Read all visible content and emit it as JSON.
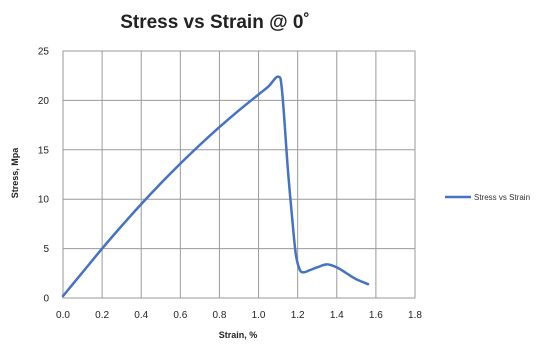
{
  "chart_data": {
    "type": "line",
    "title": "Stress vs Strain @ 0˚",
    "xlabel": "Strain, %",
    "ylabel": "Stress, Mpa",
    "xlim": [
      0,
      1.8
    ],
    "ylim": [
      0,
      25
    ],
    "x_ticks": [
      "0.0",
      "0.2",
      "0.4",
      "0.6",
      "0.8",
      "1.0",
      "1.2",
      "1.4",
      "1.6",
      "1.8"
    ],
    "y_ticks": [
      "0",
      "5",
      "10",
      "15",
      "20",
      "25"
    ],
    "grid": true,
    "legend_position": "right",
    "series": [
      {
        "name": "Stress vs Strain",
        "color": "#4472c4",
        "x": [
          0.0,
          0.1,
          0.2,
          0.3,
          0.4,
          0.5,
          0.6,
          0.7,
          0.8,
          0.9,
          1.0,
          1.05,
          1.1,
          1.12,
          1.15,
          1.17,
          1.19,
          1.21,
          1.23,
          1.26,
          1.3,
          1.35,
          1.4,
          1.45,
          1.5,
          1.56
        ],
        "y": [
          0.2,
          2.6,
          5.0,
          7.3,
          9.5,
          11.6,
          13.6,
          15.5,
          17.3,
          19.0,
          20.6,
          21.4,
          22.4,
          21.0,
          13.0,
          8.5,
          4.5,
          2.9,
          2.6,
          2.8,
          3.1,
          3.4,
          3.1,
          2.5,
          1.9,
          1.4
        ]
      }
    ]
  }
}
